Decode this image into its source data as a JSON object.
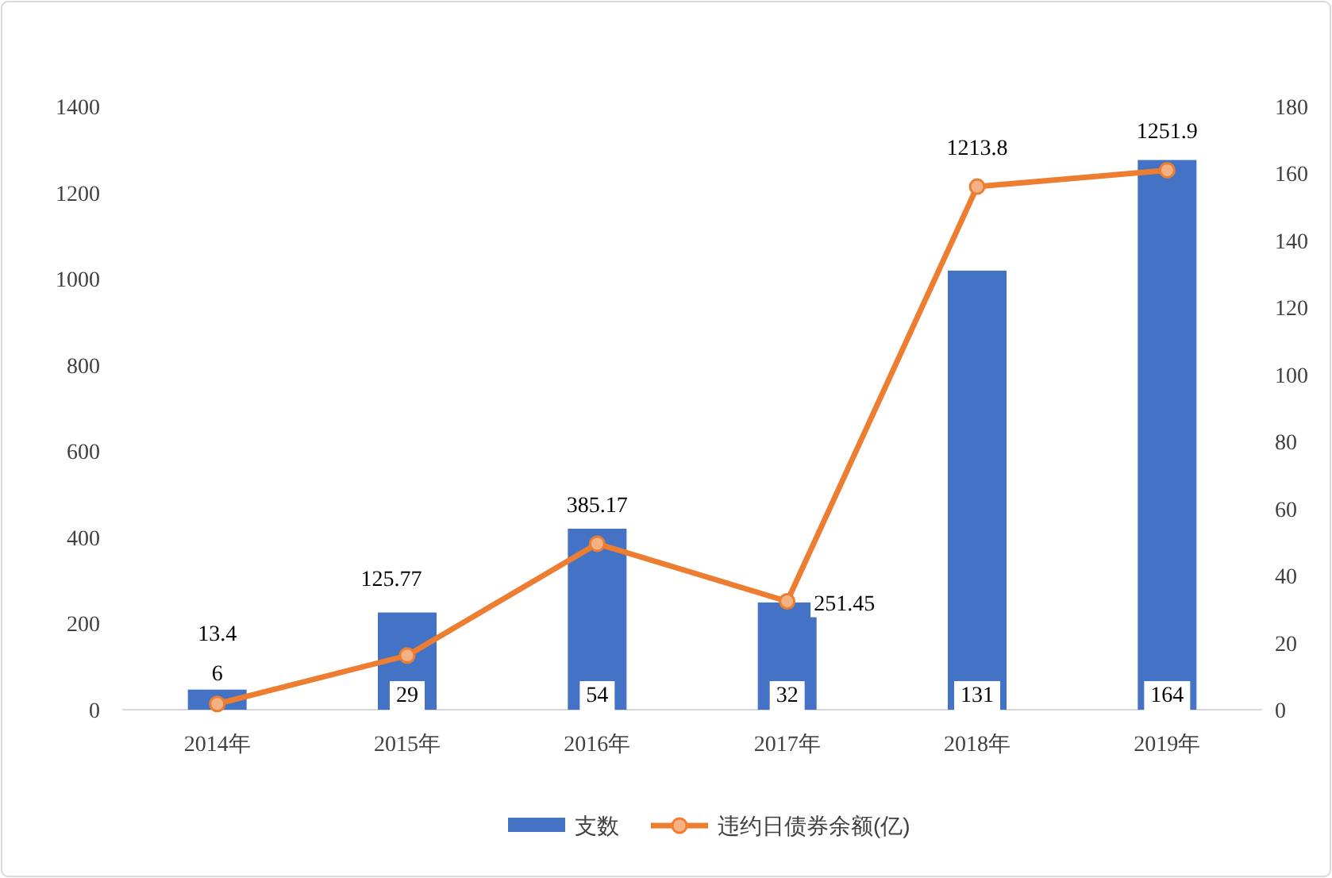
{
  "chart_data": {
    "type": "bar",
    "categories": [
      "2014年",
      "2015年",
      "2016年",
      "2017年",
      "2018年",
      "2019年"
    ],
    "series": [
      {
        "name": "支数",
        "color": "#4472c4",
        "axis": "y2",
        "values": [
          6,
          29,
          54,
          32,
          131,
          164
        ]
      },
      {
        "name": "违约日债券余额(亿)",
        "type": "line",
        "color": "#ed7d31",
        "axis": "y",
        "marker": "circle",
        "values": [
          13.4,
          125.77,
          385.17,
          251.45,
          1213.8,
          1251.9
        ]
      }
    ],
    "ylim": [
      0,
      1400
    ],
    "yticks": [
      0,
      200,
      400,
      600,
      800,
      1000,
      1200,
      1400
    ],
    "y2lim": [
      0,
      180
    ],
    "y2ticks": [
      0,
      20,
      40,
      60,
      80,
      100,
      120,
      140,
      160,
      180
    ],
    "data_labels": true,
    "legend": "bottom",
    "grid": false
  }
}
